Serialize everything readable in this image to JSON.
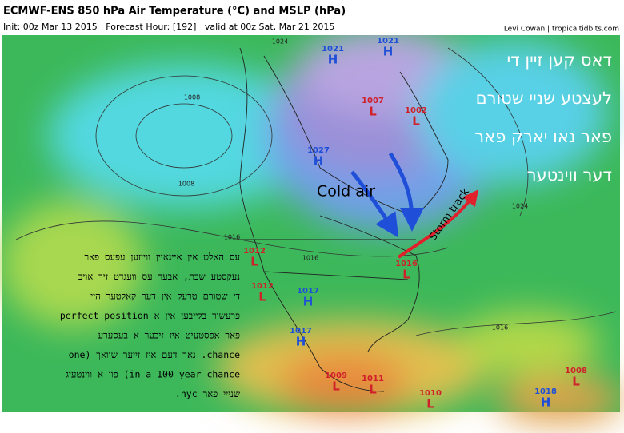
{
  "header": {
    "title": "ECMWF-ENS 850 hPa Air Temperature (°C) and MSLP (hPa)",
    "subtitle": "Init: 00z Mar 13 2015   Forecast Hour: [192]   valid at 00z Sat, Mar 21 2015",
    "credit": "Levi Cowan | tropicaltidbits.com"
  },
  "centers": [
    {
      "type": "H",
      "pressure": 1021
    },
    {
      "type": "H",
      "pressure": 1021
    },
    {
      "type": "L",
      "pressure": 1007
    },
    {
      "type": "L",
      "pressure": 1002
    },
    {
      "type": "H",
      "pressure": 1027
    },
    {
      "type": "L",
      "pressure": 1012
    },
    {
      "type": "L",
      "pressure": 1012
    },
    {
      "type": "H",
      "pressure": 1017
    },
    {
      "type": "H",
      "pressure": 1017
    },
    {
      "type": "L",
      "pressure": 1016
    },
    {
      "type": "L",
      "pressure": 1009
    },
    {
      "type": "L",
      "pressure": 1011
    },
    {
      "type": "L",
      "pressure": 1010
    },
    {
      "type": "L",
      "pressure": 1008
    },
    {
      "type": "H",
      "pressure": 1018
    }
  ],
  "isobar_labels": [
    1024,
    1008,
    1008,
    1016,
    1016,
    1024,
    1016
  ],
  "annotations": {
    "cold_air": "Cold air",
    "storm_track": "Storm track"
  },
  "note_right": [
    "דאס קען זיין די",
    "לעצטע שניי שטורם",
    "פאר נאו יארק פאר",
    "דער ווינטער"
  ],
  "note_left": [
    "עס האלט אין איינאיין ווייזען עפעס פאר",
    "נעקסטע שבת, אבער עס וועגדט זיך אויב",
    "די שטורם טרעק אין דער קאלטער היי",
    "פרעשור בלייבען אין א perfect position",
    "פאר אפסטעיט איז זיכער א בעסערע",
    "chance. נאך דעם איז זייער שוואך (one",
    "in a 100 year chance) פון א ווינטעיג",
    "שנייי פאר nyc."
  ]
}
